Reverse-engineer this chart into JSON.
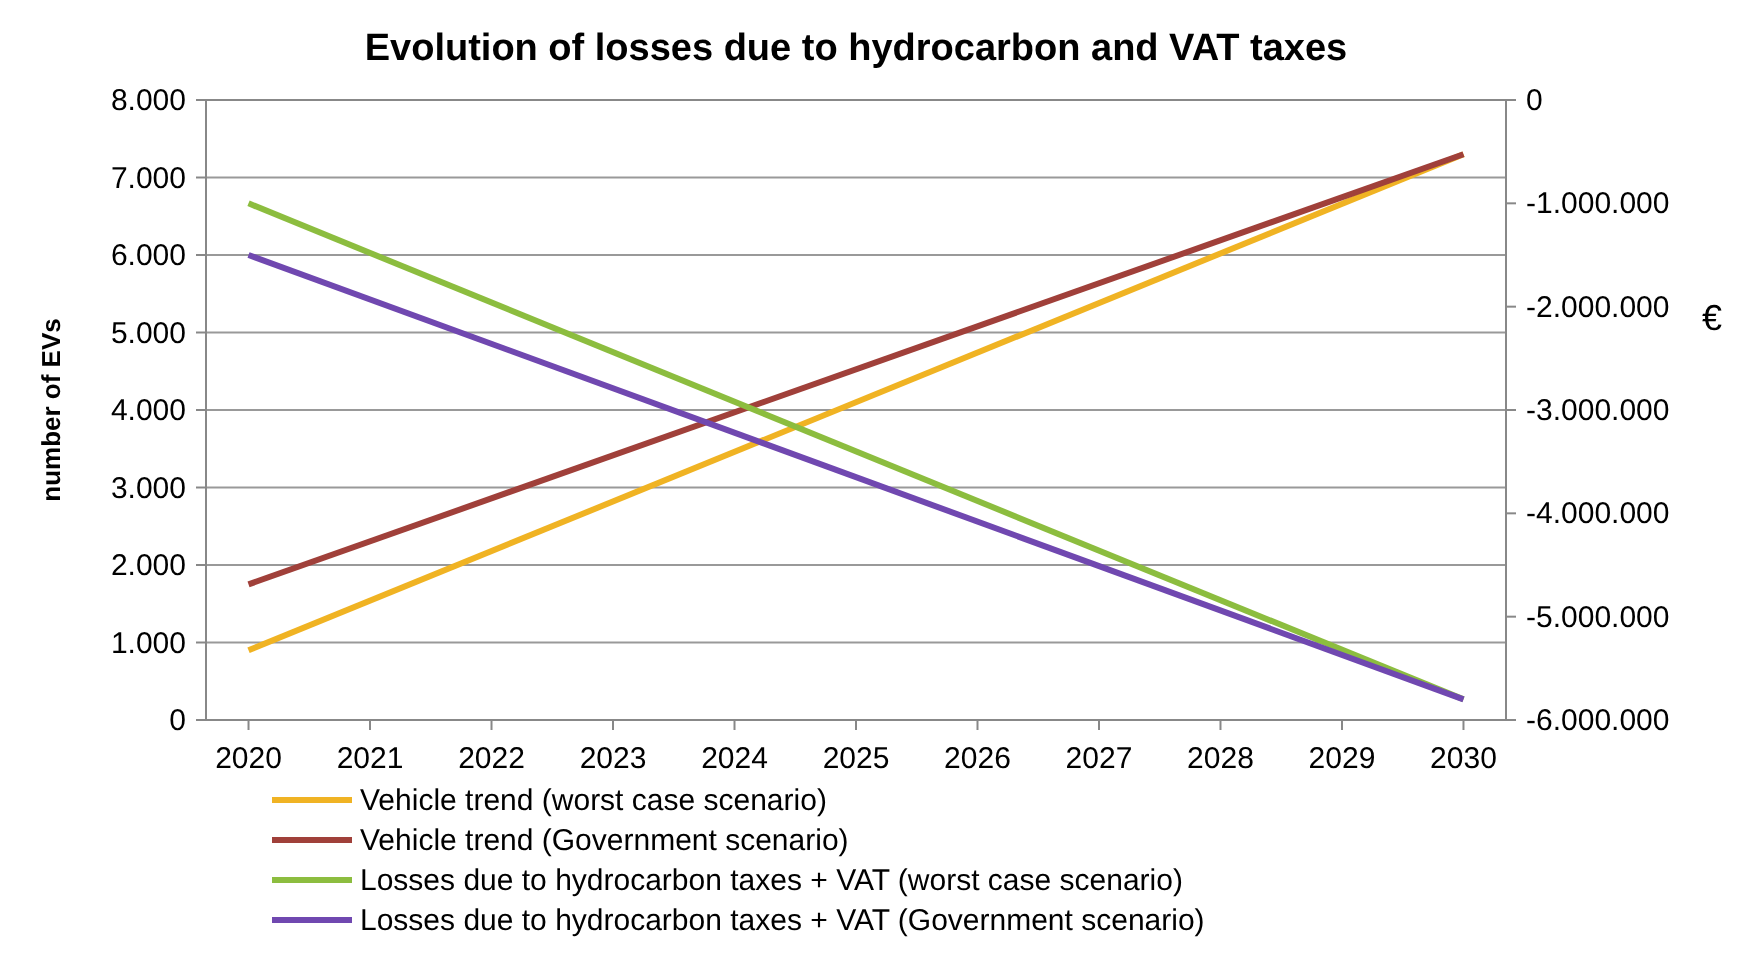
{
  "chart_data": {
    "type": "line",
    "title": "Evolution of losses due to hydrocarbon and VAT taxes",
    "ylabel": "number of EVs",
    "y2label": "€",
    "xlim": [
      2019.65,
      2030.35
    ],
    "xticks": [
      2020,
      2021,
      2022,
      2023,
      2024,
      2025,
      2026,
      2027,
      2028,
      2029,
      2030
    ],
    "ylim": [
      0,
      8000
    ],
    "yticks": [
      {
        "value": 0,
        "label": "0"
      },
      {
        "value": 1000,
        "label": "1.000"
      },
      {
        "value": 2000,
        "label": "2.000"
      },
      {
        "value": 3000,
        "label": "3.000"
      },
      {
        "value": 4000,
        "label": "4.000"
      },
      {
        "value": 5000,
        "label": "5.000"
      },
      {
        "value": 6000,
        "label": "6.000"
      },
      {
        "value": 7000,
        "label": "7.000"
      },
      {
        "value": 8000,
        "label": "8.000"
      }
    ],
    "y2lim": [
      -6000000,
      0
    ],
    "y2ticks": [
      {
        "value": -6000000,
        "label": "-6.000.000"
      },
      {
        "value": -5000000,
        "label": "-5.000.000"
      },
      {
        "value": -4000000,
        "label": "-4.000.000"
      },
      {
        "value": -3000000,
        "label": "-3.000.000"
      },
      {
        "value": -2000000,
        "label": "-2.000.000"
      },
      {
        "value": -1000000,
        "label": "-1.000.000"
      },
      {
        "value": 0,
        "label": "0"
      }
    ],
    "x": [
      2020,
      2030
    ],
    "grid": "y",
    "legend": "bottom",
    "marker": "none",
    "line_style": "solid",
    "series": [
      {
        "name": "Vehicle trend (worst case scenario)",
        "color": "#f0b323",
        "values": [
          900,
          7300
        ]
      },
      {
        "name": "Vehicle trend (Government scenario)",
        "color": "#a0403a",
        "values": [
          1750,
          7300
        ]
      },
      {
        "name": "Losses due to hydrocarbon taxes + VAT (worst case scenario)",
        "color": "#8cbd3f",
        "values": [
          -1000000,
          -5800000
        ],
        "axis": "y2"
      },
      {
        "name": "Losses due to hydrocarbon taxes + VAT (Government scenario)",
        "color": "#7048b0",
        "values": [
          -1500000,
          -5800000
        ],
        "axis": "y2"
      }
    ]
  }
}
